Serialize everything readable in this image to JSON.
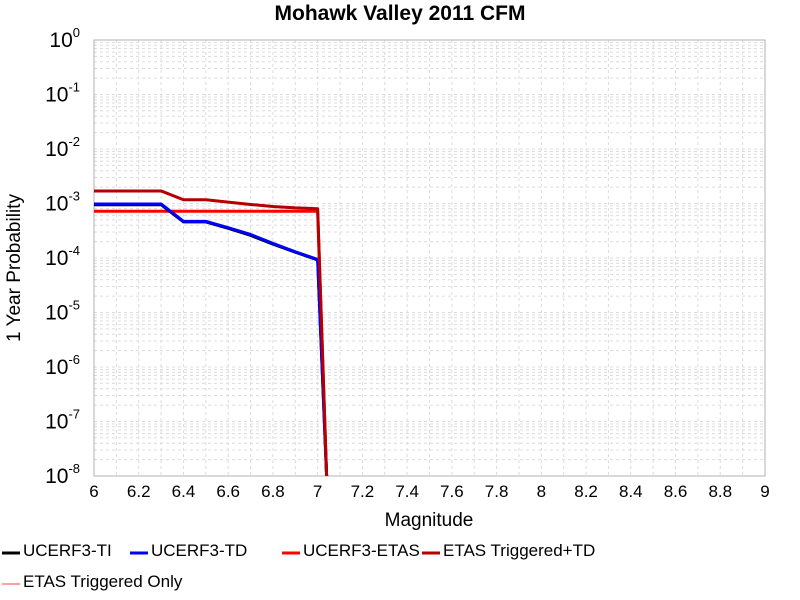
{
  "chart_data": {
    "type": "line",
    "title": "Mohawk Valley 2011 CFM",
    "xlabel": "Magnitude",
    "ylabel": "1 Year Probability",
    "xlim": [
      6,
      9
    ],
    "ylim": [
      1e-08,
      1
    ],
    "yscale": "log",
    "grid": true,
    "legend_position": "bottom",
    "x_ticks": [
      "6",
      "6.2",
      "6.4",
      "6.6",
      "6.8",
      "7",
      "7.2",
      "7.4",
      "7.6",
      "7.8",
      "8",
      "8.2",
      "8.4",
      "8.6",
      "8.8",
      "9"
    ],
    "y_ticks": [
      {
        "base": "10",
        "exp": "0"
      },
      {
        "base": "10",
        "exp": "-1"
      },
      {
        "base": "10",
        "exp": "-2"
      },
      {
        "base": "10",
        "exp": "-3"
      },
      {
        "base": "10",
        "exp": "-4"
      },
      {
        "base": "10",
        "exp": "-5"
      },
      {
        "base": "10",
        "exp": "-6"
      },
      {
        "base": "10",
        "exp": "-7"
      },
      {
        "base": "10",
        "exp": "-8"
      }
    ],
    "series": [
      {
        "name": "UCERF3-TI",
        "color": "#000000",
        "width": 3,
        "x": [
          6.0,
          6.3,
          6.4,
          6.5,
          6.6,
          6.7,
          6.8,
          6.9,
          7.0,
          7.04
        ],
        "y": [
          0.00095,
          0.00095,
          0.00046,
          0.00046,
          0.00035,
          0.00026,
          0.00018,
          0.000128,
          9.2e-05,
          1e-08
        ]
      },
      {
        "name": "UCERF3-TD",
        "color": "#0000ff",
        "width": 3,
        "x": [
          6.0,
          6.3,
          6.4,
          6.5,
          6.6,
          6.7,
          6.8,
          6.9,
          7.0,
          7.04
        ],
        "y": [
          0.00098,
          0.00098,
          0.00047,
          0.00047,
          0.00036,
          0.00027,
          0.000185,
          0.00013,
          9.4e-05,
          1e-08
        ]
      },
      {
        "name": "UCERF3-ETAS",
        "color": "#ff0000",
        "width": 3,
        "x": [
          6.0,
          7.0,
          7.04
        ],
        "y": [
          0.00072,
          0.00072,
          1e-08
        ]
      },
      {
        "name": "ETAS Triggered+TD",
        "color": "#b40000",
        "width": 3,
        "x": [
          6.0,
          6.3,
          6.4,
          6.5,
          6.6,
          6.7,
          6.8,
          6.9,
          7.0,
          7.04
        ],
        "y": [
          0.0017,
          0.0017,
          0.00117,
          0.00117,
          0.00106,
          0.00096,
          0.00088,
          0.00083,
          0.0008,
          1e-08
        ]
      },
      {
        "name": "ETAS Triggered Only",
        "color": "#ff8080",
        "width": 1.5,
        "x": [],
        "y": []
      }
    ]
  }
}
